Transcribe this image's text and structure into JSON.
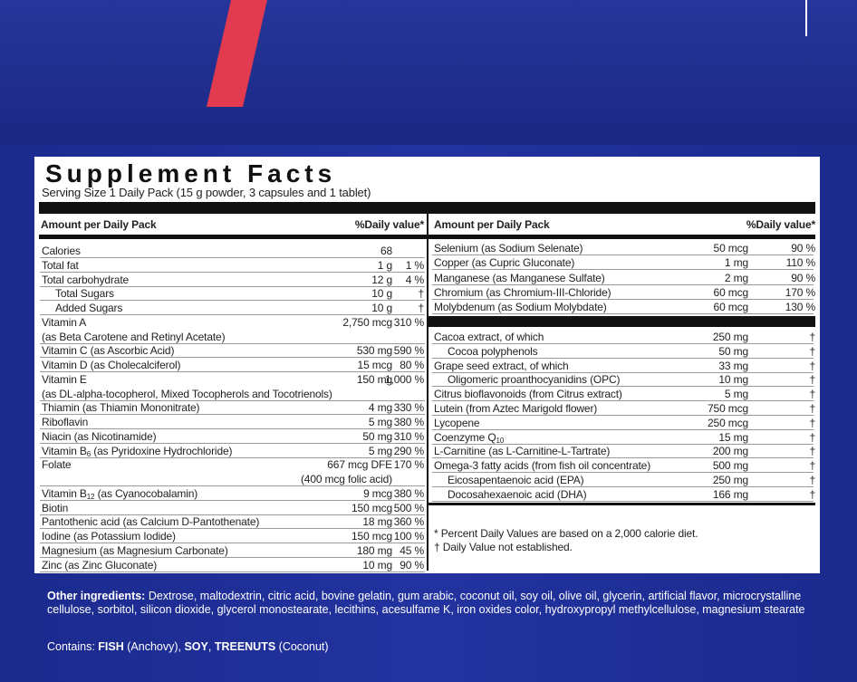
{
  "title": "Supplement Facts",
  "serving_size": "Serving Size 1 Daily Pack (15 g powder, 3 capsules and 1 tablet)",
  "left_table": {
    "header": {
      "amount": "Amount per Daily Pack",
      "dv": "%Daily value*"
    },
    "rows": [
      {
        "name": "Calories",
        "amount": "68"
      },
      {
        "name": "Total fat",
        "amount": "1 g",
        "dv": "1 %"
      },
      {
        "name": "Total carbohydrate",
        "amount": "12 g",
        "dv": "4 %",
        "sub": [
          {
            "name": "Total Sugars",
            "amount": "10 g",
            "dv": "†"
          },
          {
            "name": "Added Sugars",
            "amount": "10 g",
            "dv": "†"
          }
        ]
      },
      {
        "name": "Vitamin A",
        "amount": "2,750 mcg",
        "dv": "310 %",
        "detail": "(as Beta Carotene and Retinyl Acetate)"
      },
      {
        "name": "Vitamin C (as Ascorbic Acid)",
        "amount": "530 mg",
        "dv": "590 %"
      },
      {
        "name": "Vitamin D (as Cholecalciferol)",
        "amount": "15 mcg",
        "dv": "80 %"
      },
      {
        "name": "Vitamin E",
        "amount": "150 mg",
        "dv": "1,000 %",
        "detail": "(as DL-alpha-tocopherol, Mixed Tocopherols and Tocotrienols)"
      },
      {
        "name": "Thiamin (as Thiamin Mononitrate)",
        "amount": "4 mg",
        "dv": "330 %"
      },
      {
        "name": "Riboflavin",
        "amount": "5 mg",
        "dv": "380 %"
      },
      {
        "name": "Niacin (as Nicotinamide)",
        "amount": "50 mg",
        "dv": "310 %"
      },
      {
        "name": [
          "Vitamin B",
          "6",
          " (as Pyridoxine Hydrochloride)"
        ],
        "amount": "5 mg",
        "dv": "290 %"
      },
      {
        "name": "Folate",
        "amount": "667 mcg DFE",
        "dv": "170 %",
        "amount_detail": "(400 mcg folic acid)"
      },
      {
        "name": [
          "Vitamin B",
          "12",
          " (as Cyanocobalamin)"
        ],
        "amount": "9 mcg",
        "dv": "380 %"
      },
      {
        "name": "Biotin",
        "amount": "150 mcg",
        "dv": "500 %"
      },
      {
        "name": "Pantothenic acid (as Calcium D-Pantothenate)",
        "amount": "18 mg",
        "dv": "360 %"
      },
      {
        "name": "Iodine (as Potassium Iodide)",
        "amount": "150 mcg",
        "dv": "100 %"
      },
      {
        "name": "Magnesium (as Magnesium Carbonate)",
        "amount": "180 mg",
        "dv": "45 %"
      },
      {
        "name": "Zinc (as Zinc Gluconate)",
        "amount": "10 mg",
        "dv": "90 %"
      }
    ]
  },
  "right_table": {
    "header": {
      "amount": "Amount per Daily Pack",
      "dv": "%Daily value*"
    },
    "groups": [
      [
        {
          "name": "Selenium (as Sodium Selenate)",
          "amount": "50 mcg",
          "dv": "90 %"
        },
        {
          "name": "Copper (as Cupric Gluconate)",
          "amount": "1 mg",
          "dv": "110 %"
        },
        {
          "name": "Manganese (as Manganese Sulfate)",
          "amount": "2 mg",
          "dv": "90 %"
        },
        {
          "name": "Chromium (as Chromium-III-Chloride)",
          "amount": "60 mcg",
          "dv": "170 %"
        },
        {
          "name": "Molybdenum (as Sodium Molybdate)",
          "amount": "60 mcg",
          "dv": "130 %"
        }
      ],
      [
        {
          "name": "Cacoa extract, of which",
          "amount": "250 mg",
          "dv": "†",
          "sub": [
            {
              "name": "Cocoa polyphenols",
              "amount": "50 mg",
              "dv": "†"
            }
          ]
        },
        {
          "name": "Grape seed extract, of which",
          "amount": "33 mg",
          "dv": "†",
          "sub": [
            {
              "name": "Oligomeric proanthocyanidins (OPC)",
              "amount": "10 mg",
              "dv": "†"
            }
          ]
        },
        {
          "name": "Citrus bioflavonoids (from Citrus extract)",
          "amount": "5 mg",
          "dv": "†"
        },
        {
          "name": "Lutein (from Aztec Marigold flower)",
          "amount": "750 mcg",
          "dv": "†"
        },
        {
          "name": "Lycopene",
          "amount": "250 mcg",
          "dv": "†"
        },
        {
          "name": [
            "Coenzyme Q",
            "10"
          ],
          "amount": "15 mg",
          "dv": "†"
        },
        {
          "name": "L-Carnitine (as L-Carnitine-L-Tartrate)",
          "amount": "200 mg",
          "dv": "†"
        },
        {
          "name": "Omega-3 fatty acids (from fish oil concentrate)",
          "amount": "500 mg",
          "dv": "†",
          "sub": [
            {
              "name": "Eicosapentaenoic acid (EPA)",
              "amount": "250 mg",
              "dv": "†"
            },
            {
              "name": "Docosahexaenoic acid (DHA)",
              "amount": "166 mg",
              "dv": "†"
            }
          ]
        }
      ]
    ]
  },
  "footnotes": [
    "*  Percent Daily Values are based on a 2,000 calorie diet.",
    "†  Daily Value not established."
  ],
  "other_ingredients": {
    "label": "Other ingredients:",
    "text": " Dextrose, maltodextrin, citric acid, bovine gelatin, gum arabic, coconut oil, soy oil, olive oil, glycerin, artificial flavor, microcrystalline cellulose, sorbitol, silicon dioxide, glycerol monostearate, lecithins, acesulfame K, iron oxides color, hydroxypropyl methylcellulose, magnesium stearate"
  },
  "contains": {
    "label": "Contains: ",
    "parts": [
      "FISH",
      " (Anchovy), ",
      "SOY",
      ", ",
      "TREENUTS",
      " (Coconut)"
    ]
  }
}
